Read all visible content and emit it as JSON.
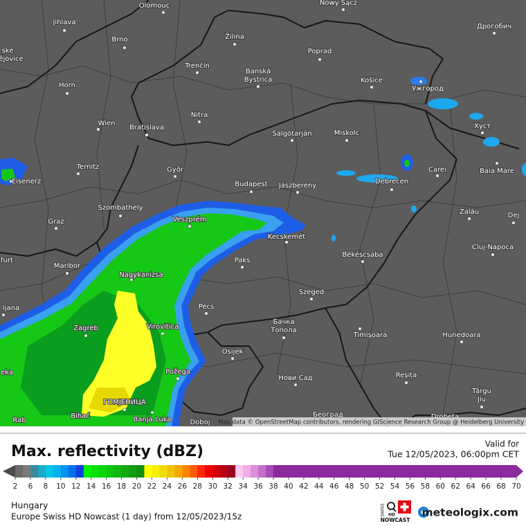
{
  "map": {
    "cities": [
      "Olomouc",
      "Nowy Sącz",
      "Jihlava",
      "Дрогобич",
      "Brno",
      "Žilina",
      "Poprad",
      "ské",
      "ějovice",
      "Trenčín",
      "Banská",
      "Bystrica",
      "Košice",
      "Ужгород",
      "Horn",
      "Nitra",
      "Wien",
      "Bratislava",
      "Salgótarján",
      "Miskolc",
      "Хуст",
      "Ternitz",
      "Győr",
      "Carei",
      "Baia Mare",
      "Eisenerz",
      "Budapest",
      "Jászberény",
      "Debrecen",
      "Szombathely",
      "Zalău",
      "Dej",
      "Graz",
      "Veszprém",
      "Kecskemét",
      "Cluj-Napoca",
      "Maribor",
      "Paks",
      "Békéscsaba",
      "furt",
      "Nagykanizsa",
      "Pécs",
      "Szeged",
      "ljana",
      "Zagreb",
      "Virovitica",
      "Бачка",
      "Топола",
      "Timișoara",
      "Hunedoara",
      "Osijek",
      "Požega",
      "eka",
      "Reșița",
      "Нови Сад",
      "Târgu",
      "Jiu",
      "ГОМЈЕНИЦА",
      "Bihać",
      "Banja Luka",
      "Rab",
      "Doboj",
      "Београд",
      "Drobeta"
    ],
    "attribution": "Map data © OpenStreetMap contributors, rendering GIScience Research Group @ Heidelberg University"
  },
  "legend": {
    "title": "Max. reflectivity (dBZ)",
    "valid_label": "Valid for",
    "valid_time": "Tue 12/05/2023, 06:00pm CET",
    "ticks": [
      2,
      6,
      8,
      10,
      12,
      14,
      16,
      18,
      20,
      22,
      24,
      26,
      28,
      30,
      32,
      34,
      36,
      38,
      40,
      42,
      44,
      46,
      48,
      50,
      52,
      54,
      56,
      58,
      60,
      62,
      64,
      66,
      68,
      70
    ],
    "colors": [
      "#4a4a4a",
      "#6a6a6a",
      "#7a7a7a",
      "#3d8b9a",
      "#1eaac4",
      "#05c6e6",
      "#00b2f2",
      "#0094f0",
      "#0070ea",
      "#1040dc",
      "#00f000",
      "#06e206",
      "#0ad40a",
      "#0cc60c",
      "#0eb80e",
      "#10aa10",
      "#129c12",
      "#138e13",
      "#ffff00",
      "#f4ee00",
      "#eedc00",
      "#f2c400",
      "#f6a600",
      "#fa8600",
      "#ff5a00",
      "#ff2800",
      "#ee0000",
      "#d40008",
      "#b80014",
      "#9a0020",
      "#ffc8f0",
      "#f0aee6",
      "#dc90d8",
      "#c470c8",
      "#a84cb8",
      "#8a2a9c"
    ]
  },
  "footer": {
    "region": "Hungary",
    "model": "Europe Swiss HD Nowcast (1 day) from 12/05/2023/15z",
    "logo_brand": "SWISS",
    "logo_hd": "HD",
    "logo_product": "NOWCAST",
    "site": "meteologix.com"
  }
}
